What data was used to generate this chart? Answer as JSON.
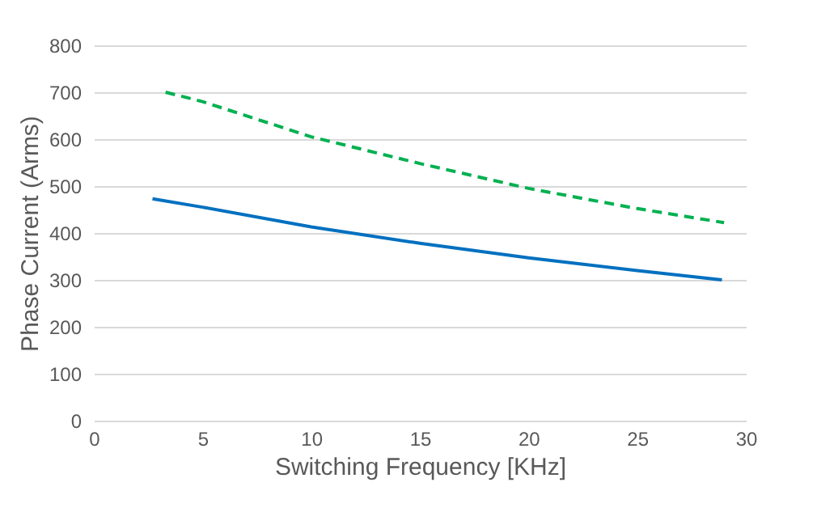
{
  "chart_data": {
    "type": "line",
    "xlabel": "Switching Frequency [KHz]",
    "ylabel": "Phase Current (Arms)",
    "xlim": [
      0,
      30
    ],
    "xticks": [
      0,
      5,
      10,
      15,
      20,
      25,
      30
    ],
    "ylim": [
      0,
      800
    ],
    "yticks": [
      0,
      100,
      200,
      300,
      400,
      500,
      600,
      700,
      800
    ],
    "grid": "y",
    "marker": "none",
    "series": [
      {
        "color": "#0070c0",
        "line_style": "solid",
        "x": [
          2.7,
          5,
          10,
          15,
          20,
          25,
          28.9
        ],
        "values": [
          473,
          455,
          413,
          378,
          347,
          320,
          300
        ]
      },
      {
        "color": "#00b050",
        "line_style": "dashed",
        "x": [
          3.3,
          5,
          10,
          15,
          20,
          25,
          29
        ],
        "values": [
          700,
          680,
          605,
          548,
          495,
          452,
          422
        ]
      }
    ]
  }
}
